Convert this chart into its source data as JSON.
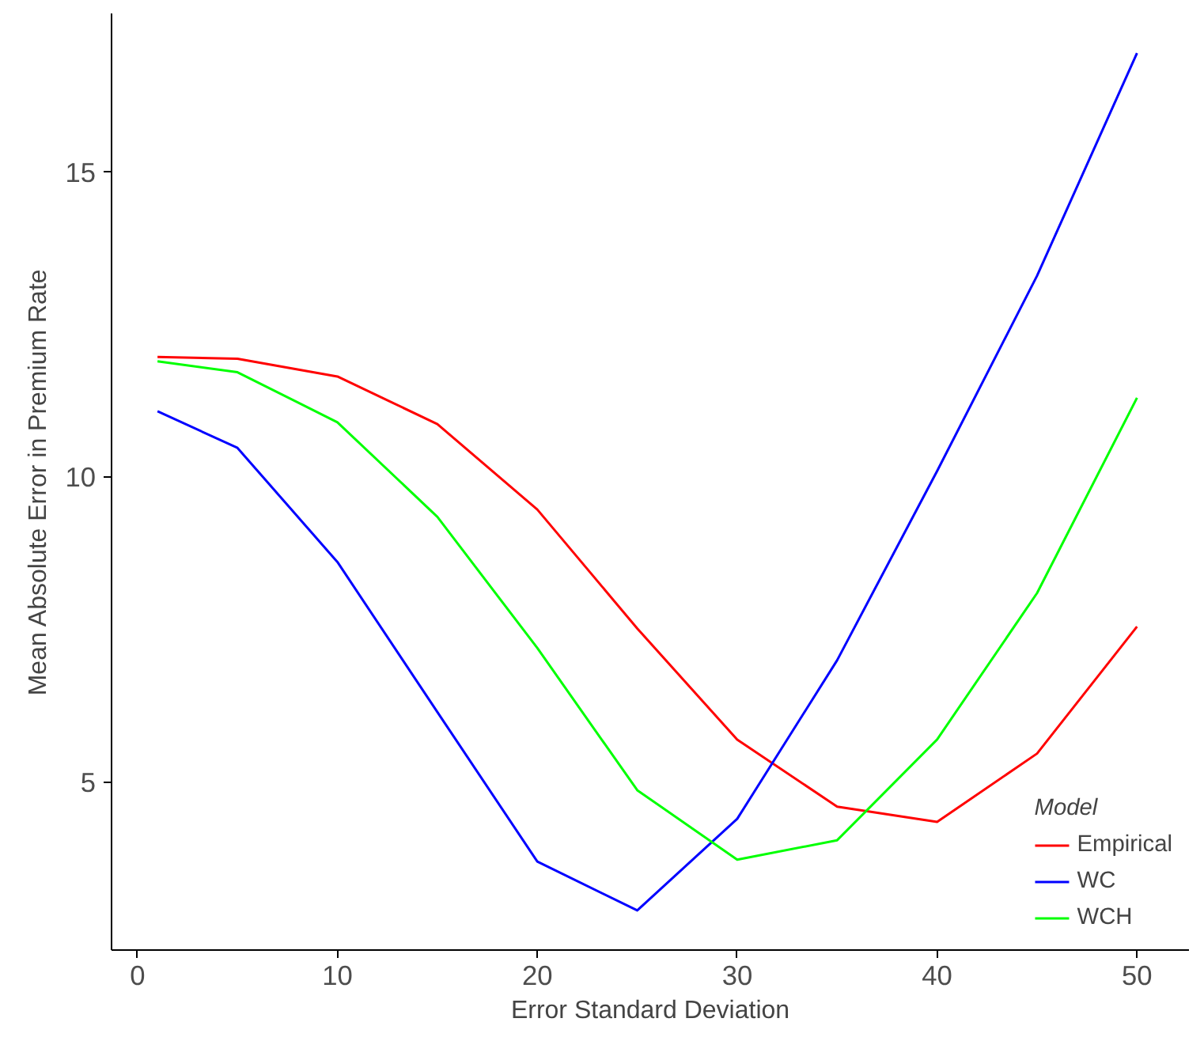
{
  "chart_data": {
    "type": "line",
    "xlabel": "Error Standard Deviation",
    "ylabel": "Mean Absolute Error in Premium Rate",
    "legend_title": "Model",
    "legend": "bottom right",
    "grid": false,
    "marker": "none",
    "line_style": "solid",
    "x": [
      1,
      5,
      10,
      15,
      20,
      25,
      30,
      35,
      40,
      45,
      50
    ],
    "xlim": [
      -1.3,
      52.6
    ],
    "xticks": [
      0,
      10,
      20,
      30,
      40,
      50
    ],
    "ylim": [
      2.25,
      17.6
    ],
    "yticks": [
      5,
      10,
      15
    ],
    "series": [
      {
        "name": "Empirical",
        "color": "#ff0000",
        "values": [
          11.97,
          11.94,
          11.65,
          10.87,
          9.47,
          7.52,
          5.7,
          4.6,
          4.35,
          5.47,
          7.55
        ]
      },
      {
        "name": "WC",
        "color": "#0000ff",
        "values": [
          11.08,
          10.48,
          8.61,
          6.15,
          3.7,
          2.9,
          4.4,
          7.0,
          10.1,
          13.3,
          16.95
        ]
      },
      {
        "name": "WCH",
        "color": "#00ff00",
        "values": [
          11.9,
          11.72,
          10.9,
          9.35,
          7.2,
          4.87,
          3.73,
          4.05,
          5.7,
          8.1,
          11.3
        ]
      }
    ]
  }
}
